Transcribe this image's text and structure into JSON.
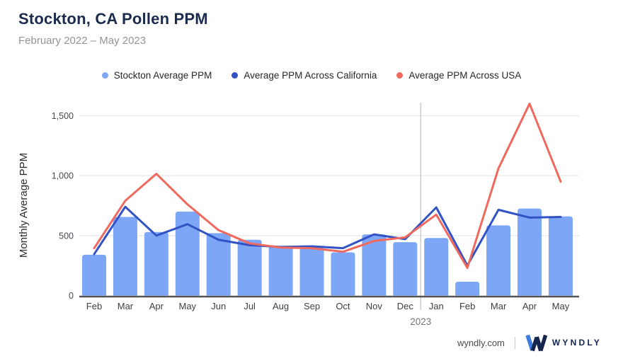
{
  "header": {
    "title": "Stockton, CA Pollen PPM",
    "subtitle": "February 2022 – May 2023"
  },
  "legend": {
    "items": [
      {
        "label": "Stockton Average PPM",
        "color": "#7DA6F7"
      },
      {
        "label": "Average PPM Across California",
        "color": "#3352C4"
      },
      {
        "label": "Average PPM Across USA",
        "color": "#F0695E"
      }
    ]
  },
  "chart_data": {
    "type": "bar",
    "title": "Stockton, CA Pollen PPM",
    "subtitle": "February 2022 – May 2023",
    "categories": [
      "Feb",
      "Mar",
      "Apr",
      "May",
      "Jun",
      "Jul",
      "Aug",
      "Sep",
      "Oct",
      "Nov",
      "Dec",
      "Jan",
      "Feb",
      "Mar",
      "Apr",
      "May"
    ],
    "year_divider": {
      "after_index": 10,
      "label": "2023"
    },
    "series": [
      {
        "name": "Stockton Average PPM",
        "type": "bar",
        "color": "#7DA6F7",
        "values": [
          340,
          655,
          530,
          700,
          520,
          465,
          410,
          400,
          360,
          510,
          445,
          480,
          115,
          585,
          725,
          660
        ]
      },
      {
        "name": "Average PPM Across California",
        "type": "line",
        "color": "#3352C4",
        "values": [
          345,
          740,
          500,
          595,
          465,
          420,
          405,
          410,
          395,
          510,
          470,
          735,
          250,
          715,
          650,
          655
        ]
      },
      {
        "name": "Average PPM Across USA",
        "type": "line",
        "color": "#F0695E",
        "values": [
          395,
          790,
          1015,
          760,
          545,
          435,
          400,
          395,
          365,
          455,
          485,
          675,
          230,
          1060,
          1600,
          950
        ]
      }
    ],
    "xlabel": "",
    "ylabel": "Monthly Average PPM",
    "yticks": [
      0,
      500,
      1000,
      1500
    ],
    "ytick_labels": [
      "0",
      "500",
      "1,000",
      "1,500"
    ],
    "ylim": [
      0,
      1650
    ],
    "grid": true,
    "legend_position": "top"
  },
  "colors": {
    "title": "#1B2B4D",
    "subtitle": "#8F9499",
    "gridline": "#E9E9E9",
    "baseline": "#555555",
    "divider": "#CCCCCC",
    "tick_text": "#46494D",
    "year_text": "#757575",
    "brand_navy": "#14264D",
    "brand_light_blue": "#3D7BE0"
  },
  "footer": {
    "site": "wyndly.com",
    "brand": "WYNDLY"
  }
}
